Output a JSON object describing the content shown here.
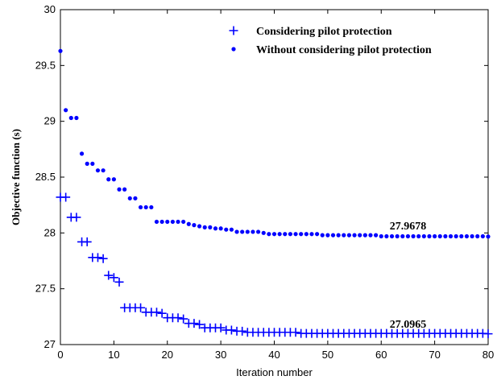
{
  "chart_data": {
    "type": "scatter",
    "xlabel": "Iteration number",
    "ylabel": "Objective function  (s)",
    "xlim": [
      0,
      80
    ],
    "ylim": [
      27,
      30
    ],
    "xticks": [
      0,
      10,
      20,
      30,
      40,
      50,
      60,
      70,
      80
    ],
    "yticks": [
      27,
      27.5,
      28,
      28.5,
      29,
      29.5,
      30
    ],
    "ytick_labels": [
      "27",
      "27.5",
      "28",
      "28.5",
      "29",
      "29.5",
      "30"
    ],
    "grid": false,
    "legend_position": "top-right",
    "colors": {
      "series": "#0000ff",
      "axes": "#000000"
    },
    "series": [
      {
        "name": "Considering pilot protection",
        "marker": "plus",
        "x": [
          0,
          1,
          2,
          3,
          4,
          5,
          6,
          7,
          8,
          9,
          10,
          11,
          12,
          13,
          14,
          15,
          16,
          17,
          18,
          19,
          20,
          21,
          22,
          23,
          24,
          25,
          26,
          27,
          28,
          29,
          30,
          31,
          32,
          33,
          34,
          35,
          36,
          37,
          38,
          39,
          40,
          41,
          42,
          43,
          44,
          45,
          46,
          47,
          48,
          49,
          50,
          51,
          52,
          53,
          54,
          55,
          56,
          57,
          58,
          59,
          60,
          61,
          62,
          63,
          64,
          65,
          66,
          67,
          68,
          69,
          70,
          71,
          72,
          73,
          74,
          75,
          76,
          77,
          78,
          79,
          80
        ],
        "y": [
          28.32,
          28.32,
          28.14,
          28.14,
          27.92,
          27.92,
          27.78,
          27.78,
          27.77,
          27.62,
          27.6,
          27.56,
          27.33,
          27.33,
          27.33,
          27.33,
          27.29,
          27.29,
          27.29,
          27.28,
          27.24,
          27.24,
          27.24,
          27.23,
          27.19,
          27.19,
          27.18,
          27.15,
          27.15,
          27.15,
          27.15,
          27.13,
          27.13,
          27.12,
          27.12,
          27.11,
          27.11,
          27.11,
          27.11,
          27.11,
          27.11,
          27.11,
          27.11,
          27.11,
          27.11,
          27.1,
          27.1,
          27.1,
          27.1,
          27.1,
          27.1,
          27.1,
          27.1,
          27.1,
          27.1,
          27.1,
          27.1,
          27.1,
          27.1,
          27.1,
          27.1,
          27.1,
          27.1,
          27.1,
          27.1,
          27.1,
          27.1,
          27.1,
          27.1,
          27.1,
          27.1,
          27.1,
          27.1,
          27.1,
          27.1,
          27.1,
          27.1,
          27.1,
          27.1,
          27.1,
          27.0965
        ]
      },
      {
        "name": "Without considering pilot protection",
        "marker": "dot",
        "x": [
          0,
          1,
          2,
          3,
          4,
          5,
          6,
          7,
          8,
          9,
          10,
          11,
          12,
          13,
          14,
          15,
          16,
          17,
          18,
          19,
          20,
          21,
          22,
          23,
          24,
          25,
          26,
          27,
          28,
          29,
          30,
          31,
          32,
          33,
          34,
          35,
          36,
          37,
          38,
          39,
          40,
          41,
          42,
          43,
          44,
          45,
          46,
          47,
          48,
          49,
          50,
          51,
          52,
          53,
          54,
          55,
          56,
          57,
          58,
          59,
          60,
          61,
          62,
          63,
          64,
          65,
          66,
          67,
          68,
          69,
          70,
          71,
          72,
          73,
          74,
          75,
          76,
          77,
          78,
          79,
          80
        ],
        "y": [
          29.63,
          29.1,
          29.03,
          29.03,
          28.71,
          28.62,
          28.62,
          28.56,
          28.56,
          28.48,
          28.48,
          28.39,
          28.39,
          28.31,
          28.31,
          28.23,
          28.23,
          28.23,
          28.1,
          28.1,
          28.1,
          28.1,
          28.1,
          28.1,
          28.08,
          28.07,
          28.06,
          28.05,
          28.05,
          28.04,
          28.04,
          28.03,
          28.03,
          28.01,
          28.01,
          28.01,
          28.01,
          28.01,
          28.0,
          27.99,
          27.99,
          27.99,
          27.99,
          27.99,
          27.99,
          27.99,
          27.99,
          27.99,
          27.99,
          27.98,
          27.98,
          27.98,
          27.98,
          27.98,
          27.98,
          27.98,
          27.98,
          27.98,
          27.98,
          27.98,
          27.97,
          27.97,
          27.97,
          27.97,
          27.97,
          27.97,
          27.97,
          27.97,
          27.97,
          27.97,
          27.97,
          27.97,
          27.97,
          27.97,
          27.97,
          27.97,
          27.97,
          27.97,
          27.97,
          27.97,
          27.9678
        ]
      }
    ],
    "annotations": [
      {
        "text": "27.9678",
        "x": 64,
        "y": 28.06
      },
      {
        "text": "27.0965",
        "x": 64,
        "y": 27.18
      }
    ]
  }
}
